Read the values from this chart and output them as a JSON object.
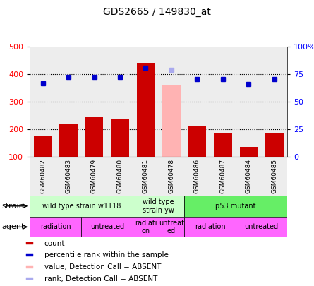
{
  "title": "GDS2665 / 149830_at",
  "samples": [
    "GSM60482",
    "GSM60483",
    "GSM60479",
    "GSM60480",
    "GSM60481",
    "GSM60478",
    "GSM60486",
    "GSM60487",
    "GSM60484",
    "GSM60485"
  ],
  "counts": [
    178,
    222,
    248,
    237,
    443,
    null,
    211,
    188,
    137,
    188
  ],
  "absent_count": [
    null,
    null,
    null,
    null,
    null,
    362,
    null,
    null,
    null,
    null
  ],
  "percentile_ranks": [
    67,
    73,
    73,
    73,
    81,
    null,
    71,
    71,
    66,
    71
  ],
  "absent_rank": [
    null,
    null,
    null,
    null,
    null,
    79,
    null,
    null,
    null,
    null
  ],
  "ylim_left": [
    100,
    500
  ],
  "ylim_right": [
    0,
    100
  ],
  "left_ticks": [
    100,
    200,
    300,
    400,
    500
  ],
  "right_ticks": [
    0,
    25,
    50,
    75,
    100
  ],
  "right_tick_labels": [
    "0",
    "25",
    "50",
    "75",
    "100%"
  ],
  "bar_color": "#cc0000",
  "absent_bar_color": "#ffb3b3",
  "rank_color": "#0000cc",
  "absent_rank_color": "#aaaaee",
  "strain_groups": [
    {
      "label": "wild type strain w1118",
      "start": 0,
      "end": 4,
      "color": "#ccffcc"
    },
    {
      "label": "wild type\nstrain yw",
      "start": 4,
      "end": 6,
      "color": "#ccffcc"
    },
    {
      "label": "p53 mutant",
      "start": 6,
      "end": 10,
      "color": "#66ee66"
    }
  ],
  "agent_groups": [
    {
      "label": "radiation",
      "start": 0,
      "end": 2,
      "color": "#ff66ff"
    },
    {
      "label": "untreated",
      "start": 2,
      "end": 4,
      "color": "#ff66ff"
    },
    {
      "label": "radiati\non",
      "start": 4,
      "end": 5,
      "color": "#ff66ff"
    },
    {
      "label": "untreat\ned",
      "start": 5,
      "end": 6,
      "color": "#ff66ff"
    },
    {
      "label": "radiation",
      "start": 6,
      "end": 8,
      "color": "#ff66ff"
    },
    {
      "label": "untreated",
      "start": 8,
      "end": 10,
      "color": "#ff66ff"
    }
  ],
  "legend_items": [
    {
      "label": "count",
      "color": "#cc0000"
    },
    {
      "label": "percentile rank within the sample",
      "color": "#0000cc"
    },
    {
      "label": "value, Detection Call = ABSENT",
      "color": "#ffb3b3"
    },
    {
      "label": "rank, Detection Call = ABSENT",
      "color": "#aaaaee"
    }
  ],
  "col_bg": "#cccccc",
  "col_bg_alpha": 0.35
}
